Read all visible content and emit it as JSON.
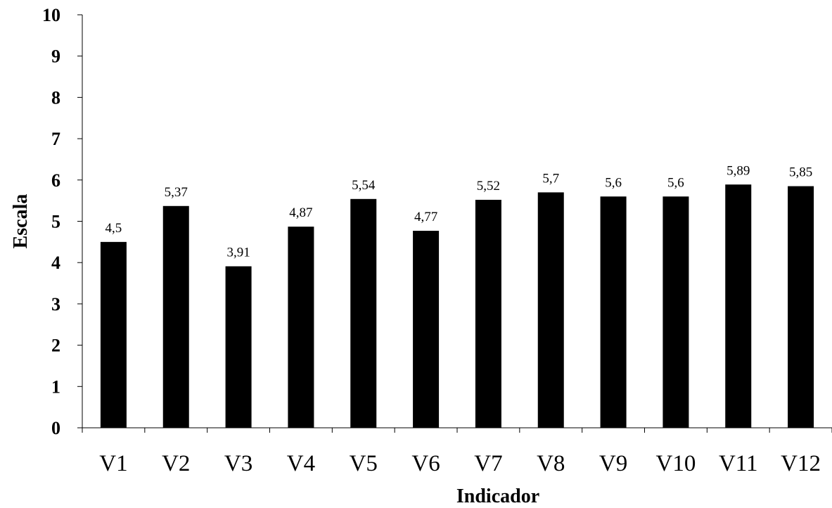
{
  "chart_data": {
    "type": "bar",
    "title": "",
    "xlabel": "Indicador",
    "ylabel": "Escala",
    "categories": [
      "V1",
      "V2",
      "V3",
      "V4",
      "V5",
      "V6",
      "V7",
      "V8",
      "V9",
      "V10",
      "V11",
      "V12"
    ],
    "values": [
      4.5,
      5.37,
      3.91,
      4.87,
      5.54,
      4.77,
      5.52,
      5.7,
      5.6,
      5.6,
      5.89,
      5.85
    ],
    "data_labels": [
      "4,5",
      "5,37",
      "3,91",
      "4,87",
      "5,54",
      "4,77",
      "5,52",
      "5,7",
      "5,6",
      "5,6",
      "5,89",
      "5,85"
    ],
    "yticks": [
      "0",
      "1",
      "2",
      "3",
      "4",
      "5",
      "6",
      "7",
      "8",
      "9",
      "10"
    ],
    "ylim": [
      0,
      10
    ],
    "grid": false,
    "legend": "none",
    "bar_color": "#000000",
    "axis_color": "#000000"
  }
}
